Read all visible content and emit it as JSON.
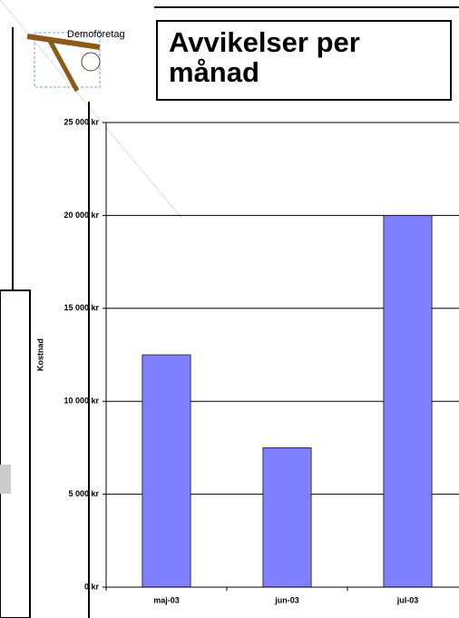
{
  "logo_text": "Demoföretag",
  "chart_data": {
    "type": "bar",
    "title": "Avvikelser per månad",
    "y_label": "Kostnad",
    "categories": [
      "maj-03",
      "jun-03",
      "jul-03"
    ],
    "values": [
      12500,
      7500,
      20000
    ],
    "color": "#8080ff",
    "ylim": [
      0,
      25000
    ],
    "yticks": [
      {
        "value": 0,
        "label": "0 kr"
      },
      {
        "value": 5000,
        "label": "5 000 kr"
      },
      {
        "value": 10000,
        "label": "10 000 kr"
      },
      {
        "value": 15000,
        "label": "15 000 kr"
      },
      {
        "value": 20000,
        "label": "20 000 kr"
      },
      {
        "value": 25000,
        "label": "25 000 kr"
      }
    ],
    "grid": true
  }
}
